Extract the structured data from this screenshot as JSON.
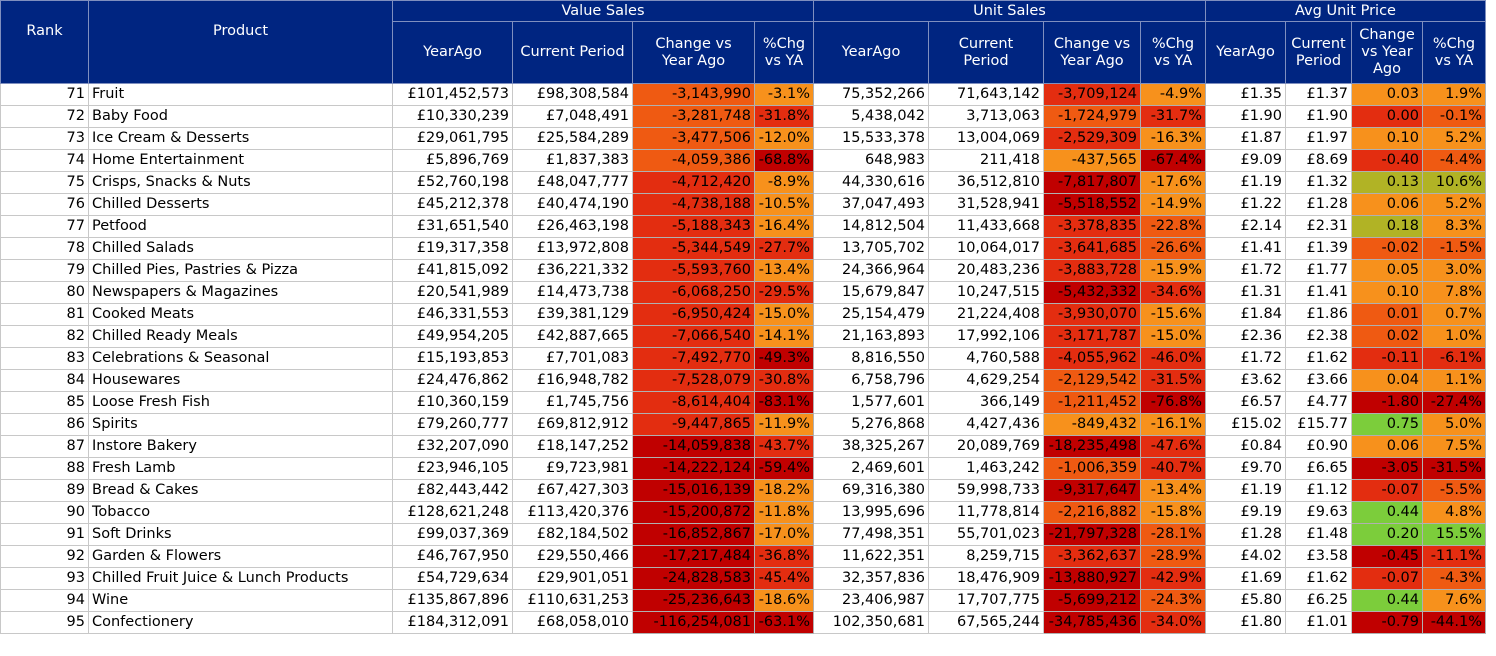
{
  "header": {
    "rank": "Rank",
    "product": "Product",
    "groups": [
      "Value Sales",
      "Unit Sales",
      "Avg Unit Price"
    ],
    "value_sub": [
      "YearAgo",
      "Current Period",
      "Change vs Year Ago",
      "%Chg vs YA"
    ],
    "unit_sub": [
      "YearAgo",
      "Current Period",
      "Change vs Year Ago",
      "%Chg vs YA"
    ],
    "price_sub": [
      "YearAgo",
      "Current Period",
      "Change vs Year Ago",
      "%Chg vs YA"
    ]
  },
  "colors": {
    "header_bg": "#002581",
    "header_text": "#ffffff",
    "heat_dark_red": "#c00000",
    "heat_red": "#e32d10",
    "heat_orange_red": "#ef5a12",
    "heat_orange": "#f7911c",
    "heat_olive": "#b1b325",
    "heat_green": "#7ccd3b"
  },
  "rows": [
    {
      "rank": "71",
      "product": "Fruit",
      "v_ya": "£101,452,573",
      "v_cp": "£98,308,584",
      "v_chg": "-3,143,990",
      "v_pct": "-3.1%",
      "u_ya": "75,352,266",
      "u_cp": "71,643,142",
      "u_chg": "-3,709,124",
      "u_pct": "-4.9%",
      "p_ya": "£1.35",
      "p_cp": "£1.37",
      "p_chg": "0.03",
      "p_pct": "1.9%",
      "c": [
        "#ef5a12",
        "#f7911c",
        "#e32d10",
        "#f7911c",
        "#f7911c",
        "#f7911c"
      ]
    },
    {
      "rank": "72",
      "product": "Baby Food",
      "v_ya": "£10,330,239",
      "v_cp": "£7,048,491",
      "v_chg": "-3,281,748",
      "v_pct": "-31.8%",
      "u_ya": "5,438,042",
      "u_cp": "3,713,063",
      "u_chg": "-1,724,979",
      "u_pct": "-31.7%",
      "p_ya": "£1.90",
      "p_cp": "£1.90",
      "p_chg": "0.00",
      "p_pct": "-0.1%",
      "c": [
        "#ef5a12",
        "#e32d10",
        "#ef5a12",
        "#e32d10",
        "#e32d10",
        "#ef5a12"
      ]
    },
    {
      "rank": "73",
      "product": "Ice Cream & Desserts",
      "v_ya": "£29,061,795",
      "v_cp": "£25,584,289",
      "v_chg": "-3,477,506",
      "v_pct": "-12.0%",
      "u_ya": "15,533,378",
      "u_cp": "13,004,069",
      "u_chg": "-2,529,309",
      "u_pct": "-16.3%",
      "p_ya": "£1.87",
      "p_cp": "£1.97",
      "p_chg": "0.10",
      "p_pct": "5.2%",
      "c": [
        "#ef5a12",
        "#f7911c",
        "#e32d10",
        "#f7911c",
        "#f7911c",
        "#f7911c"
      ]
    },
    {
      "rank": "74",
      "product": "Home Entertainment",
      "v_ya": "£5,896,769",
      "v_cp": "£1,837,383",
      "v_chg": "-4,059,386",
      "v_pct": "-68.8%",
      "u_ya": "648,983",
      "u_cp": "211,418",
      "u_chg": "-437,565",
      "u_pct": "-67.4%",
      "p_ya": "£9.09",
      "p_cp": "£8.69",
      "p_chg": "-0.40",
      "p_pct": "-4.4%",
      "c": [
        "#ef5a12",
        "#c00000",
        "#f7911c",
        "#c00000",
        "#e32d10",
        "#ef5a12"
      ]
    },
    {
      "rank": "75",
      "product": "Crisps, Snacks & Nuts",
      "v_ya": "£52,760,198",
      "v_cp": "£48,047,777",
      "v_chg": "-4,712,420",
      "v_pct": "-8.9%",
      "u_ya": "44,330,616",
      "u_cp": "36,512,810",
      "u_chg": "-7,817,807",
      "u_pct": "-17.6%",
      "p_ya": "£1.19",
      "p_cp": "£1.32",
      "p_chg": "0.13",
      "p_pct": "10.6%",
      "c": [
        "#e32d10",
        "#f7911c",
        "#c00000",
        "#f7911c",
        "#b1b325",
        "#b1b325"
      ]
    },
    {
      "rank": "76",
      "product": "Chilled Desserts",
      "v_ya": "£45,212,378",
      "v_cp": "£40,474,190",
      "v_chg": "-4,738,188",
      "v_pct": "-10.5%",
      "u_ya": "37,047,493",
      "u_cp": "31,528,941",
      "u_chg": "-5,518,552",
      "u_pct": "-14.9%",
      "p_ya": "£1.22",
      "p_cp": "£1.28",
      "p_chg": "0.06",
      "p_pct": "5.2%",
      "c": [
        "#e32d10",
        "#f7911c",
        "#c00000",
        "#f7911c",
        "#f7911c",
        "#f7911c"
      ]
    },
    {
      "rank": "77",
      "product": "Petfood",
      "v_ya": "£31,651,540",
      "v_cp": "£26,463,198",
      "v_chg": "-5,188,343",
      "v_pct": "-16.4%",
      "u_ya": "14,812,504",
      "u_cp": "11,433,668",
      "u_chg": "-3,378,835",
      "u_pct": "-22.8%",
      "p_ya": "£2.14",
      "p_cp": "£2.31",
      "p_chg": "0.18",
      "p_pct": "8.3%",
      "c": [
        "#e32d10",
        "#f7911c",
        "#e32d10",
        "#ef5a12",
        "#b1b325",
        "#f7911c"
      ]
    },
    {
      "rank": "78",
      "product": "Chilled Salads",
      "v_ya": "£19,317,358",
      "v_cp": "£13,972,808",
      "v_chg": "-5,344,549",
      "v_pct": "-27.7%",
      "u_ya": "13,705,702",
      "u_cp": "10,064,017",
      "u_chg": "-3,641,685",
      "u_pct": "-26.6%",
      "p_ya": "£1.41",
      "p_cp": "£1.39",
      "p_chg": "-0.02",
      "p_pct": "-1.5%",
      "c": [
        "#e32d10",
        "#e32d10",
        "#e32d10",
        "#ef5a12",
        "#ef5a12",
        "#ef5a12"
      ]
    },
    {
      "rank": "79",
      "product": "Chilled Pies, Pastries & Pizza",
      "v_ya": "£41,815,092",
      "v_cp": "£36,221,332",
      "v_chg": "-5,593,760",
      "v_pct": "-13.4%",
      "u_ya": "24,366,964",
      "u_cp": "20,483,236",
      "u_chg": "-3,883,728",
      "u_pct": "-15.9%",
      "p_ya": "£1.72",
      "p_cp": "£1.77",
      "p_chg": "0.05",
      "p_pct": "3.0%",
      "c": [
        "#e32d10",
        "#f7911c",
        "#e32d10",
        "#f7911c",
        "#f7911c",
        "#f7911c"
      ]
    },
    {
      "rank": "80",
      "product": "Newspapers & Magazines",
      "v_ya": "£20,541,989",
      "v_cp": "£14,473,738",
      "v_chg": "-6,068,250",
      "v_pct": "-29.5%",
      "u_ya": "15,679,847",
      "u_cp": "10,247,515",
      "u_chg": "-5,432,332",
      "u_pct": "-34.6%",
      "p_ya": "£1.31",
      "p_cp": "£1.41",
      "p_chg": "0.10",
      "p_pct": "7.8%",
      "c": [
        "#e32d10",
        "#e32d10",
        "#c00000",
        "#e32d10",
        "#f7911c",
        "#f7911c"
      ]
    },
    {
      "rank": "81",
      "product": "Cooked Meats",
      "v_ya": "£46,331,553",
      "v_cp": "£39,381,129",
      "v_chg": "-6,950,424",
      "v_pct": "-15.0%",
      "u_ya": "25,154,479",
      "u_cp": "21,224,408",
      "u_chg": "-3,930,070",
      "u_pct": "-15.6%",
      "p_ya": "£1.84",
      "p_cp": "£1.86",
      "p_chg": "0.01",
      "p_pct": "0.7%",
      "c": [
        "#e32d10",
        "#f7911c",
        "#e32d10",
        "#f7911c",
        "#ef5a12",
        "#f7911c"
      ]
    },
    {
      "rank": "82",
      "product": "Chilled Ready Meals",
      "v_ya": "£49,954,205",
      "v_cp": "£42,887,665",
      "v_chg": "-7,066,540",
      "v_pct": "-14.1%",
      "u_ya": "21,163,893",
      "u_cp": "17,992,106",
      "u_chg": "-3,171,787",
      "u_pct": "-15.0%",
      "p_ya": "£2.36",
      "p_cp": "£2.38",
      "p_chg": "0.02",
      "p_pct": "1.0%",
      "c": [
        "#e32d10",
        "#f7911c",
        "#e32d10",
        "#f7911c",
        "#ef5a12",
        "#f7911c"
      ]
    },
    {
      "rank": "83",
      "product": "Celebrations & Seasonal",
      "v_ya": "£15,193,853",
      "v_cp": "£7,701,083",
      "v_chg": "-7,492,770",
      "v_pct": "-49.3%",
      "u_ya": "8,816,550",
      "u_cp": "4,760,588",
      "u_chg": "-4,055,962",
      "u_pct": "-46.0%",
      "p_ya": "£1.72",
      "p_cp": "£1.62",
      "p_chg": "-0.11",
      "p_pct": "-6.1%",
      "c": [
        "#e32d10",
        "#c00000",
        "#e32d10",
        "#e32d10",
        "#e32d10",
        "#e32d10"
      ]
    },
    {
      "rank": "84",
      "product": "Housewares",
      "v_ya": "£24,476,862",
      "v_cp": "£16,948,782",
      "v_chg": "-7,528,079",
      "v_pct": "-30.8%",
      "u_ya": "6,758,796",
      "u_cp": "4,629,254",
      "u_chg": "-2,129,542",
      "u_pct": "-31.5%",
      "p_ya": "£3.62",
      "p_cp": "£3.66",
      "p_chg": "0.04",
      "p_pct": "1.1%",
      "c": [
        "#e32d10",
        "#e32d10",
        "#ef5a12",
        "#e32d10",
        "#f7911c",
        "#f7911c"
      ]
    },
    {
      "rank": "85",
      "product": "Loose Fresh Fish",
      "v_ya": "£10,360,159",
      "v_cp": "£1,745,756",
      "v_chg": "-8,614,404",
      "v_pct": "-83.1%",
      "u_ya": "1,577,601",
      "u_cp": "366,149",
      "u_chg": "-1,211,452",
      "u_pct": "-76.8%",
      "p_ya": "£6.57",
      "p_cp": "£4.77",
      "p_chg": "-1.80",
      "p_pct": "-27.4%",
      "c": [
        "#e32d10",
        "#c00000",
        "#ef5a12",
        "#c00000",
        "#c00000",
        "#c00000"
      ]
    },
    {
      "rank": "86",
      "product": "Spirits",
      "v_ya": "£79,260,777",
      "v_cp": "£69,812,912",
      "v_chg": "-9,447,865",
      "v_pct": "-11.9%",
      "u_ya": "5,276,868",
      "u_cp": "4,427,436",
      "u_chg": "-849,432",
      "u_pct": "-16.1%",
      "p_ya": "£15.02",
      "p_cp": "£15.77",
      "p_chg": "0.75",
      "p_pct": "5.0%",
      "c": [
        "#e32d10",
        "#f7911c",
        "#f7911c",
        "#f7911c",
        "#7ccd3b",
        "#f7911c"
      ]
    },
    {
      "rank": "87",
      "product": "Instore Bakery",
      "v_ya": "£32,207,090",
      "v_cp": "£18,147,252",
      "v_chg": "-14,059,838",
      "v_pct": "-43.7%",
      "u_ya": "38,325,267",
      "u_cp": "20,089,769",
      "u_chg": "-18,235,498",
      "u_pct": "-47.6%",
      "p_ya": "£0.84",
      "p_cp": "£0.90",
      "p_chg": "0.06",
      "p_pct": "7.5%",
      "c": [
        "#c00000",
        "#e32d10",
        "#c00000",
        "#e32d10",
        "#f7911c",
        "#f7911c"
      ]
    },
    {
      "rank": "88",
      "product": "Fresh Lamb",
      "v_ya": "£23,946,105",
      "v_cp": "£9,723,981",
      "v_chg": "-14,222,124",
      "v_pct": "-59.4%",
      "u_ya": "2,469,601",
      "u_cp": "1,463,242",
      "u_chg": "-1,006,359",
      "u_pct": "-40.7%",
      "p_ya": "£9.70",
      "p_cp": "£6.65",
      "p_chg": "-3.05",
      "p_pct": "-31.5%",
      "c": [
        "#c00000",
        "#c00000",
        "#ef5a12",
        "#e32d10",
        "#c00000",
        "#c00000"
      ]
    },
    {
      "rank": "89",
      "product": "Bread & Cakes",
      "v_ya": "£82,443,442",
      "v_cp": "£67,427,303",
      "v_chg": "-15,016,139",
      "v_pct": "-18.2%",
      "u_ya": "69,316,380",
      "u_cp": "59,998,733",
      "u_chg": "-9,317,647",
      "u_pct": "-13.4%",
      "p_ya": "£1.19",
      "p_cp": "£1.12",
      "p_chg": "-0.07",
      "p_pct": "-5.5%",
      "c": [
        "#c00000",
        "#f7911c",
        "#c00000",
        "#f7911c",
        "#e32d10",
        "#ef5a12"
      ]
    },
    {
      "rank": "90",
      "product": "Tobacco",
      "v_ya": "£128,621,248",
      "v_cp": "£113,420,376",
      "v_chg": "-15,200,872",
      "v_pct": "-11.8%",
      "u_ya": "13,995,696",
      "u_cp": "11,778,814",
      "u_chg": "-2,216,882",
      "u_pct": "-15.8%",
      "p_ya": "£9.19",
      "p_cp": "£9.63",
      "p_chg": "0.44",
      "p_pct": "4.8%",
      "c": [
        "#c00000",
        "#f7911c",
        "#ef5a12",
        "#f7911c",
        "#7ccd3b",
        "#f7911c"
      ]
    },
    {
      "rank": "91",
      "product": "Soft Drinks",
      "v_ya": "£99,037,369",
      "v_cp": "£82,184,502",
      "v_chg": "-16,852,867",
      "v_pct": "-17.0%",
      "u_ya": "77,498,351",
      "u_cp": "55,701,023",
      "u_chg": "-21,797,328",
      "u_pct": "-28.1%",
      "p_ya": "£1.28",
      "p_cp": "£1.48",
      "p_chg": "0.20",
      "p_pct": "15.5%",
      "c": [
        "#c00000",
        "#f7911c",
        "#c00000",
        "#ef5a12",
        "#7ccd3b",
        "#7ccd3b"
      ]
    },
    {
      "rank": "92",
      "product": "Garden & Flowers",
      "v_ya": "£46,767,950",
      "v_cp": "£29,550,466",
      "v_chg": "-17,217,484",
      "v_pct": "-36.8%",
      "u_ya": "11,622,351",
      "u_cp": "8,259,715",
      "u_chg": "-3,362,637",
      "u_pct": "-28.9%",
      "p_ya": "£4.02",
      "p_cp": "£3.58",
      "p_chg": "-0.45",
      "p_pct": "-11.1%",
      "c": [
        "#c00000",
        "#e32d10",
        "#e32d10",
        "#ef5a12",
        "#c00000",
        "#e32d10"
      ]
    },
    {
      "rank": "93",
      "product": "Chilled Fruit Juice & Lunch Products",
      "v_ya": "£54,729,634",
      "v_cp": "£29,901,051",
      "v_chg": "-24,828,583",
      "v_pct": "-45.4%",
      "u_ya": "32,357,836",
      "u_cp": "18,476,909",
      "u_chg": "-13,880,927",
      "u_pct": "-42.9%",
      "p_ya": "£1.69",
      "p_cp": "£1.62",
      "p_chg": "-0.07",
      "p_pct": "-4.3%",
      "c": [
        "#c00000",
        "#e32d10",
        "#c00000",
        "#e32d10",
        "#e32d10",
        "#ef5a12"
      ]
    },
    {
      "rank": "94",
      "product": "Wine",
      "v_ya": "£135,867,896",
      "v_cp": "£110,631,253",
      "v_chg": "-25,236,643",
      "v_pct": "-18.6%",
      "u_ya": "23,406,987",
      "u_cp": "17,707,775",
      "u_chg": "-5,699,212",
      "u_pct": "-24.3%",
      "p_ya": "£5.80",
      "p_cp": "£6.25",
      "p_chg": "0.44",
      "p_pct": "7.6%",
      "c": [
        "#c00000",
        "#f7911c",
        "#c00000",
        "#ef5a12",
        "#7ccd3b",
        "#f7911c"
      ]
    },
    {
      "rank": "95",
      "product": "Confectionery",
      "v_ya": "£184,312,091",
      "v_cp": "£68,058,010",
      "v_chg": "-116,254,081",
      "v_pct": "-63.1%",
      "u_ya": "102,350,681",
      "u_cp": "67,565,244",
      "u_chg": "-34,785,436",
      "u_pct": "-34.0%",
      "p_ya": "£1.80",
      "p_cp": "£1.01",
      "p_chg": "-0.79",
      "p_pct": "-44.1%",
      "c": [
        "#c00000",
        "#c00000",
        "#c00000",
        "#e32d10",
        "#c00000",
        "#c00000"
      ]
    }
  ]
}
